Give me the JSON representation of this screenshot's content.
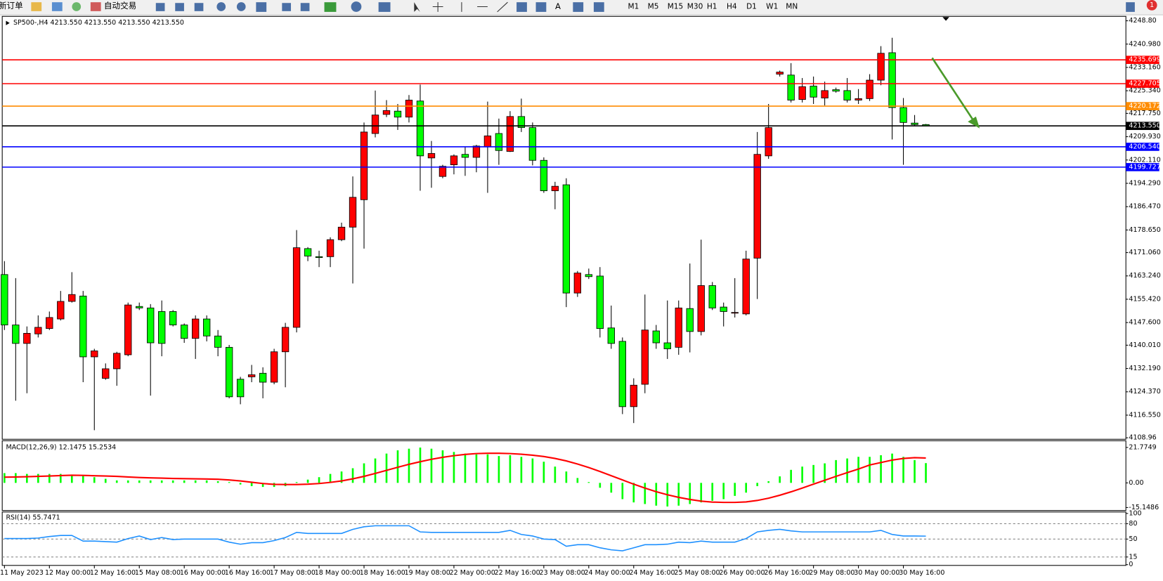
{
  "toolbar": {
    "new_order": "新订单",
    "auto_trading": "自动交易",
    "timeframes": [
      "M1",
      "M5",
      "M15",
      "M30",
      "H1",
      "H4",
      "D1",
      "W1",
      "MN"
    ],
    "alerts": "1"
  },
  "chart_data": [
    {
      "type": "candlestick",
      "title": "SP500-,H4  4213.550 4213.550 4213.550 4213.550",
      "categories": [
        "11 May 2023",
        null,
        null,
        null,
        "12 May 00:00",
        null,
        null,
        null,
        "12 May 16:00",
        null,
        null,
        null,
        "15 May 08:00",
        null,
        null,
        null,
        "16 May 00:00",
        null,
        null,
        null,
        "16 May 16:00",
        null,
        null,
        null,
        "17 May 08:00",
        null,
        null,
        null,
        "18 May 00:00",
        null,
        null,
        null,
        "18 May 16:00",
        null,
        null,
        null,
        "19 May 08:00",
        null,
        null,
        null,
        "22 May 00:00",
        null,
        null,
        null,
        "22 May 16:00",
        null,
        null,
        null,
        "23 May 08:00",
        null,
        null,
        null,
        "24 May 00:00",
        null,
        null,
        null,
        "24 May 16:00",
        null,
        null,
        null,
        "25 May 08:00",
        null,
        null,
        null,
        "26 May 00:00",
        null,
        null,
        null,
        "26 May 16:00",
        null,
        null,
        null,
        "29 May 08:00",
        null,
        null,
        null,
        "30 May 00:00",
        null,
        null,
        null,
        "30 May 16:00",
        null,
        null
      ],
      "open": [
        4163.7,
        4146.8,
        4140.6,
        4143.8,
        4145.6,
        4148.8,
        4154.7,
        4156.5,
        4136.1,
        4128.9,
        4132.1,
        4136.8,
        4153.0,
        4152.5,
        4151.3,
        4151.3,
        4146.8,
        4142.3,
        4148.8,
        4143.1,
        4139.3,
        4128.6,
        4129.4,
        4130.6,
        4127.6,
        4137.8,
        4146.0,
        4172.4,
        4169.7,
        4169.7,
        4175.4,
        4179.6,
        4188.8,
        4211.0,
        4217.4,
        4218.5,
        4216.5,
        4221.9,
        4202.8,
        4196.6,
        4200.5,
        4204.0,
        4203.0,
        4206.5,
        4211.0,
        4205.0,
        4216.7,
        4213.0,
        4202.0,
        4191.8,
        4193.8,
        4157.5,
        4163.7,
        4163.2,
        4145.8,
        4141.3,
        4119.4,
        4126.9,
        4144.8,
        4140.8,
        4139.3,
        4152.3,
        4144.6,
        4160.0,
        4152.8,
        4150.8,
        4150.5,
        4169.2,
        4203.5,
        4230.9,
        4230.6,
        4222.4,
        4226.9,
        4222.9,
        4225.7,
        4225.4,
        4222.2,
        4222.7,
        4228.9,
        4238.1,
        4219.7,
        4214.5,
        4214.0
      ],
      "high": [
        4168.2,
        4162.5,
        4146.3,
        4150.0,
        4151.3,
        4158.2,
        4164.5,
        4158.2,
        4138.8,
        4133.9,
        4137.8,
        4154.3,
        4154.3,
        4153.8,
        4155.0,
        4151.8,
        4147.3,
        4150.0,
        4150.0,
        4145.1,
        4140.1,
        4129.4,
        4133.4,
        4132.6,
        4138.8,
        4147.5,
        4178.6,
        4172.9,
        4171.7,
        4176.2,
        4181.1,
        4196.6,
        4214.7,
        4225.4,
        4222.2,
        4220.9,
        4223.9,
        4227.4,
        4208.5,
        4200.5,
        4204.0,
        4206.5,
        4207.2,
        4221.7,
        4216.0,
        4218.5,
        4222.7,
        4214.7,
        4203.0,
        4194.8,
        4196.0,
        4164.9,
        4165.7,
        4166.2,
        4153.3,
        4142.6,
        4128.9,
        4157.0,
        4146.8,
        4155.0,
        4155.0,
        4167.4,
        4175.4,
        4161.2,
        4154.3,
        4162.5,
        4171.7,
        4211.5,
        4220.9,
        4232.1,
        4234.6,
        4229.6,
        4230.1,
        4228.4,
        4226.4,
        4229.6,
        4225.9,
        4230.9,
        4240.3,
        4243.1,
        4222.9,
        4217.2,
        4214.2
      ],
      "low": [
        4145.1,
        4121.4,
        4123.9,
        4142.6,
        4145.1,
        4148.3,
        4154.3,
        4127.6,
        4111.5,
        4128.4,
        4126.4,
        4136.3,
        4151.8,
        4123.1,
        4136.3,
        4146.3,
        4140.8,
        4135.4,
        4141.3,
        4136.3,
        4122.2,
        4120.2,
        4127.6,
        4122.2,
        4126.9,
        4125.9,
        4144.3,
        4168.2,
        4166.2,
        4166.2,
        4174.9,
        4160.7,
        4172.4,
        4209.7,
        4216.5,
        4212.2,
        4214.7,
        4191.8,
        4192.8,
        4196.0,
        4197.3,
        4196.8,
        4198.0,
        4191.1,
        4200.5,
        4204.8,
        4211.5,
        4200.3,
        4191.1,
        4185.6,
        4152.8,
        4156.2,
        4162.2,
        4142.6,
        4138.8,
        4116.9,
        4113.9,
        4123.9,
        4138.8,
        4135.4,
        4136.8,
        4137.6,
        4143.3,
        4151.8,
        4146.3,
        4149.3,
        4150.0,
        4155.5,
        4202.5,
        4230.1,
        4221.4,
        4221.4,
        4220.9,
        4220.4,
        4224.7,
        4221.4,
        4220.9,
        4221.9,
        4227.2,
        4209.0,
        4200.5,
        4213.5,
        4213.5
      ],
      "close": [
        4146.8,
        4140.6,
        4144.0,
        4146.0,
        4149.3,
        4154.7,
        4157.0,
        4136.1,
        4138.1,
        4132.1,
        4137.3,
        4153.5,
        4152.5,
        4140.8,
        4140.6,
        4146.8,
        4142.3,
        4148.8,
        4143.1,
        4139.3,
        4122.7,
        4122.7,
        4130.1,
        4127.6,
        4137.8,
        4146.0,
        4172.7,
        4169.9,
        4169.4,
        4175.4,
        4179.6,
        4189.6,
        4211.5,
        4217.2,
        4218.7,
        4216.5,
        4222.2,
        4203.5,
        4204.3,
        4200.0,
        4203.5,
        4203.0,
        4206.8,
        4210.2,
        4205.3,
        4216.7,
        4213.0,
        4202.0,
        4191.8,
        4193.3,
        4157.5,
        4164.2,
        4163.0,
        4145.6,
        4140.6,
        4119.4,
        4126.6,
        4145.1,
        4140.8,
        4138.8,
        4152.5,
        4144.6,
        4160.0,
        4152.5,
        4151.3,
        4151.0,
        4168.9,
        4204.0,
        4213.0,
        4231.6,
        4222.2,
        4226.7,
        4223.2,
        4225.4,
        4225.2,
        4222.2,
        4222.7,
        4228.9,
        4237.9,
        4219.7,
        4214.7,
        4214.0,
        4213.55
      ],
      "up_color": "#ff0000",
      "down_color": "#00ff00",
      "ylim": [
        4108.96,
        4248.8
      ],
      "yticks": [
        {
          "value": 4248.8,
          "label": "4248.80"
        },
        {
          "value": 4240.98,
          "label": "4240.980"
        },
        {
          "value": 4233.16,
          "label": "4233.160"
        },
        {
          "value": 4225.34,
          "label": "4225.340"
        },
        {
          "value": 4217.75,
          "label": "4217.750"
        },
        {
          "value": 4209.93,
          "label": "4209.930"
        },
        {
          "value": 4202.11,
          "label": "4202.110"
        },
        {
          "value": 4194.29,
          "label": "4194.290"
        },
        {
          "value": 4186.47,
          "label": "4186.470"
        },
        {
          "value": 4178.65,
          "label": "4178.650"
        },
        {
          "value": 4171.06,
          "label": "4171.060"
        },
        {
          "value": 4163.24,
          "label": "4163.240"
        },
        {
          "value": 4155.42,
          "label": "4155.420"
        },
        {
          "value": 4147.6,
          "label": "4147.600"
        },
        {
          "value": 4140.01,
          "label": "4140.010"
        },
        {
          "value": 4132.19,
          "label": "4132.190"
        },
        {
          "value": 4124.37,
          "label": "4124.370"
        },
        {
          "value": 4116.55,
          "label": "4116.550"
        },
        {
          "value": 4108.96,
          "label": "4108.96"
        }
      ],
      "hlines": [
        {
          "value": 4235.699,
          "label": "4235.699",
          "color": "#ff0000"
        },
        {
          "value": 4227.705,
          "label": "4227.705",
          "color": "#ff0000"
        },
        {
          "value": 4220.172,
          "label": "4220.172",
          "color": "#ff8c00"
        },
        {
          "value": 4213.55,
          "label": "4213.550",
          "color": "#000000"
        },
        {
          "value": 4206.54,
          "label": "4206.540",
          "color": "#0000ff"
        },
        {
          "value": 4199.727,
          "label": "4199.727",
          "color": "#0000ff"
        }
      ]
    },
    {
      "type": "macd",
      "title": "MACD(12,26,9) 12.1475 15.2534",
      "bars": [
        6,
        6,
        5.5,
        5.5,
        5.5,
        5.5,
        5,
        4.5,
        3.5,
        2.5,
        1.5,
        1.5,
        1.5,
        1.5,
        1.5,
        1.5,
        1.5,
        1.5,
        1.5,
        1,
        0.5,
        -1,
        -2,
        -2.5,
        -2.5,
        -2,
        0.5,
        2,
        3.5,
        5.5,
        7,
        9,
        12,
        15,
        18,
        20,
        21,
        21.7,
        21,
        20,
        19,
        18,
        17.5,
        17.5,
        16.5,
        17,
        16,
        15,
        13,
        10,
        7,
        3,
        0.5,
        -3,
        -6,
        -10,
        -12,
        -13,
        -14,
        -14.5,
        -14,
        -13,
        -12,
        -11,
        -10,
        -8,
        -6,
        -2,
        1,
        4,
        8,
        10,
        11,
        12,
        14,
        15,
        16,
        16,
        17,
        18,
        16,
        14,
        12.1475
      ],
      "bar_color": "#00ff00",
      "signal": [
        3.5,
        3.6,
        3.8,
        4,
        4.2,
        4.5,
        4.7,
        4.6,
        4.4,
        4.2,
        4,
        3.6,
        3.3,
        3.1,
        2.9,
        2.7,
        2.6,
        2.5,
        2.4,
        2.2,
        1.8,
        1.2,
        0.4,
        -0.4,
        -0.9,
        -1,
        -1,
        -0.8,
        -0.4,
        0.3,
        1.2,
        2.5,
        4,
        5.8,
        7.7,
        9.6,
        11.4,
        13,
        14.5,
        15.7,
        16.7,
        17.5,
        18,
        18.2,
        18.2,
        18,
        17.6,
        17,
        16.2,
        15,
        13.5,
        11.6,
        9.4,
        7,
        4.4,
        1.8,
        -0.8,
        -3.2,
        -5.4,
        -7.3,
        -8.9,
        -10.2,
        -11.2,
        -11.8,
        -12,
        -12,
        -11.7,
        -10.8,
        -9.4,
        -7.6,
        -5.5,
        -3.2,
        -0.8,
        1.6,
        4,
        6.3,
        8.5,
        11,
        12.5,
        14,
        15,
        15.5,
        15.2534
      ],
      "signal_color": "#ff0000",
      "ylim": [
        -15.1486,
        21.7749
      ],
      "yticks": [
        21.7749,
        {
          "value": 0,
          "label": "0.00"
        },
        -15.1486
      ]
    },
    {
      "type": "rsi",
      "title": "RSI(14) 55.7471",
      "values": [
        51,
        51,
        51,
        52,
        55,
        57,
        57,
        46,
        46,
        45,
        44,
        51,
        56,
        49,
        53,
        49,
        50,
        50,
        50,
        50,
        44,
        40,
        43,
        43,
        47,
        53,
        63,
        61,
        61,
        61,
        61,
        69,
        74,
        76,
        76,
        76,
        76,
        64,
        63,
        63,
        63,
        63,
        63,
        63,
        63,
        67,
        59,
        56,
        50,
        49,
        36,
        39,
        39,
        33,
        29,
        27,
        33,
        39,
        39,
        40,
        44,
        43,
        46,
        44,
        44,
        44,
        51,
        64,
        67,
        69,
        66,
        64,
        64,
        64,
        64,
        64,
        64,
        64,
        67,
        59,
        56,
        56,
        55.7471
      ],
      "color": "#1e90ff",
      "ylim": [
        0,
        100
      ],
      "yticks": [
        0,
        15,
        50,
        80,
        100
      ],
      "levels": [
        15,
        50,
        80
      ]
    }
  ]
}
